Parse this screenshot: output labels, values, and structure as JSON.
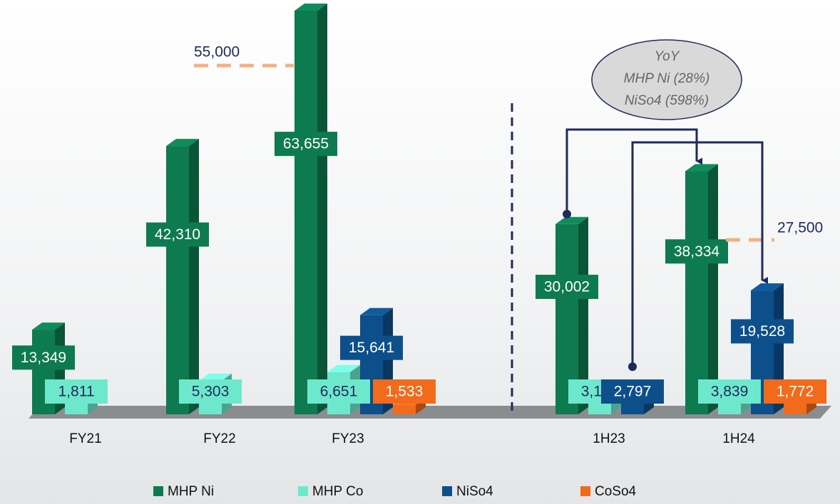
{
  "chart_data": {
    "type": "bar3d",
    "categories": [
      "FY21",
      "FY22",
      "FY23",
      "1H23",
      "1H24"
    ],
    "series": [
      {
        "name": "MHP Ni",
        "color": "#0e7a4f",
        "values": [
          13349,
          42310,
          63655,
          30002,
          38334
        ],
        "value_labels": [
          "13,349",
          "42,310",
          "63,655",
          "30,002",
          "38,334"
        ]
      },
      {
        "name": "MHP Co",
        "color": "#6ee8cc",
        "values": [
          1811,
          5303,
          6651,
          3178,
          3839
        ],
        "value_labels": [
          "1,811",
          "5,303",
          "6,651",
          "3,178",
          "3,839"
        ]
      },
      {
        "name": "NiSo4",
        "color": "#0d4f8b",
        "values": [
          null,
          null,
          15641,
          2797,
          19528
        ],
        "value_labels": [
          null,
          null,
          "15,641",
          "2,797",
          "19,528"
        ]
      },
      {
        "name": "CoSo4",
        "color": "#f26a1b",
        "values": [
          null,
          null,
          1533,
          null,
          1772
        ],
        "value_labels": [
          null,
          null,
          "1,533",
          null,
          "1,772"
        ]
      }
    ],
    "targets": [
      {
        "value": 55000,
        "label": "55,000"
      },
      {
        "value": 27500,
        "label": "27,500"
      }
    ],
    "annotation": [
      "YoY",
      "MHP Ni (28%)",
      "NiSo4 (598%)"
    ]
  }
}
